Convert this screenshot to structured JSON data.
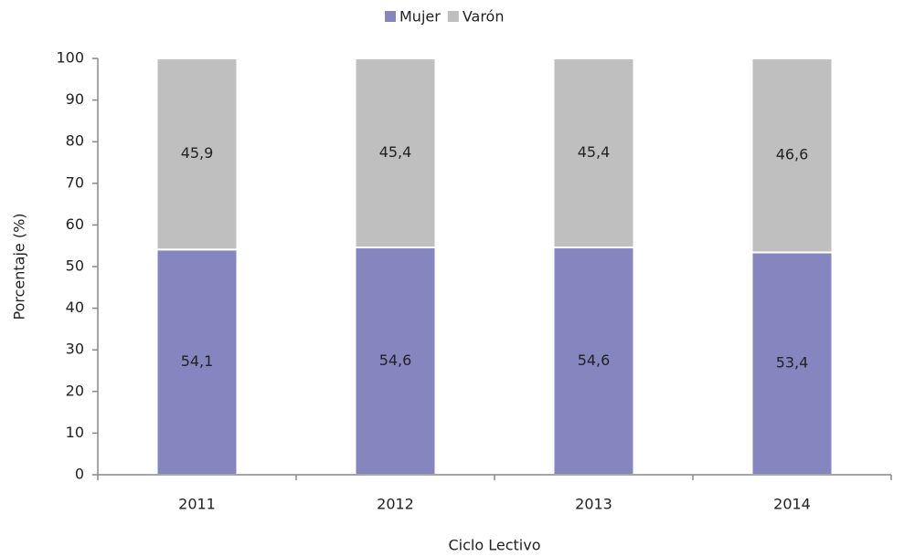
{
  "chart_data": {
    "type": "stacked_bar",
    "categories": [
      "2011",
      "2012",
      "2013",
      "2014"
    ],
    "series": [
      {
        "name": "Mujer",
        "color": "#8585c0",
        "values": [
          54.1,
          54.6,
          54.6,
          53.4
        ],
        "value_labels": [
          "54,1",
          "54,6",
          "54,6",
          "53,4"
        ]
      },
      {
        "name": "Varón",
        "color": "#bfbfbf",
        "values": [
          45.9,
          45.4,
          45.4,
          46.6
        ],
        "value_labels": [
          "45,9",
          "45,4",
          "45,4",
          "46,6"
        ]
      }
    ],
    "ylim": [
      0,
      100
    ],
    "yticks": [
      0,
      10,
      20,
      30,
      40,
      50,
      60,
      70,
      80,
      90,
      100
    ],
    "y_label": "Porcentaje (%)",
    "x_label": "Ciclo Lectivo",
    "legend": "top"
  }
}
